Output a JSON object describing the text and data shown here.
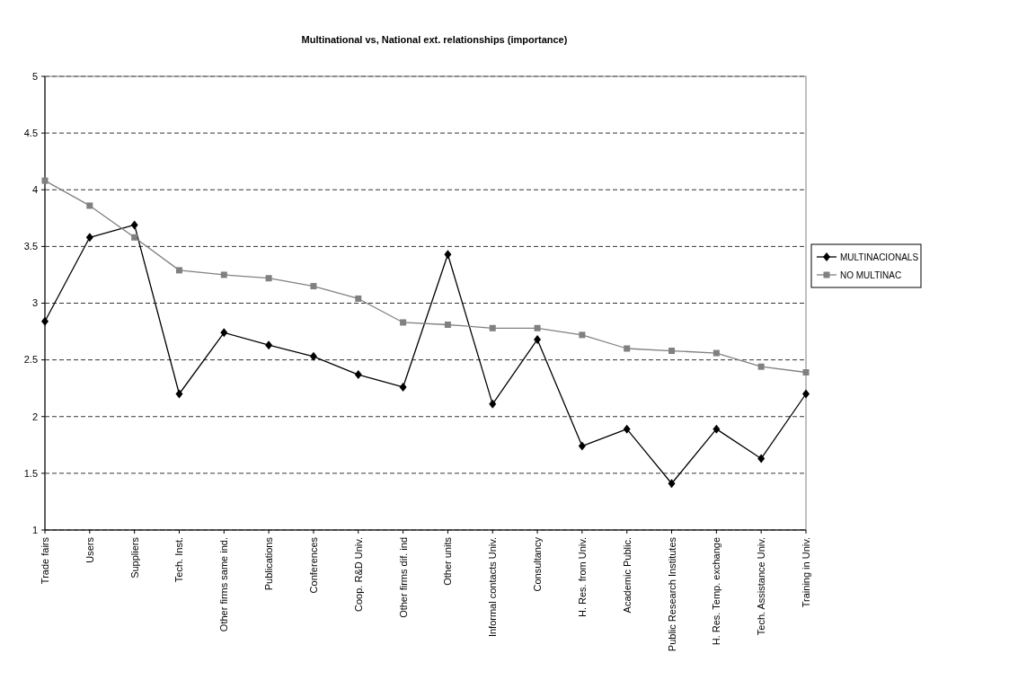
{
  "chart_data": {
    "type": "line",
    "title": "Multinational vs, National ext. relationships (importance)",
    "categories": [
      "Trade fairs",
      "Users",
      "Suppliers",
      "Tech. Inst.",
      "Other firms same ind.",
      "Publications",
      "Conferences",
      "Coop. R&D Univ.",
      "Other firms dif. ind",
      "Other units",
      "Informal contacts Univ.",
      "Consultancy",
      "H. Res. from Univ.",
      "Academic Public.",
      "Public Research Institutes",
      "H. Res. Temp. exchange",
      "Tech. Assistance Univ.",
      "Training in Univ."
    ],
    "series": [
      {
        "name": "MULTINACIONALS",
        "color": "#000000",
        "marker": "diamond",
        "values": [
          2.84,
          3.58,
          3.69,
          2.2,
          2.74,
          2.63,
          2.53,
          2.37,
          2.26,
          3.43,
          2.11,
          2.68,
          1.74,
          1.89,
          1.41,
          1.89,
          1.63,
          2.2
        ]
      },
      {
        "name": "NO MULTINAC",
        "color": "#808080",
        "marker": "square",
        "values": [
          4.08,
          3.86,
          3.58,
          3.29,
          3.25,
          3.22,
          3.15,
          3.04,
          2.83,
          2.81,
          2.78,
          2.78,
          2.72,
          2.6,
          2.58,
          2.56,
          2.44,
          2.39
        ]
      }
    ],
    "ylim": [
      1,
      5
    ],
    "yticks": [
      1,
      1.5,
      2,
      2.5,
      3,
      3.5,
      4,
      4.5,
      5
    ],
    "grid": "y",
    "legend": "right",
    "line_style": "solid"
  }
}
